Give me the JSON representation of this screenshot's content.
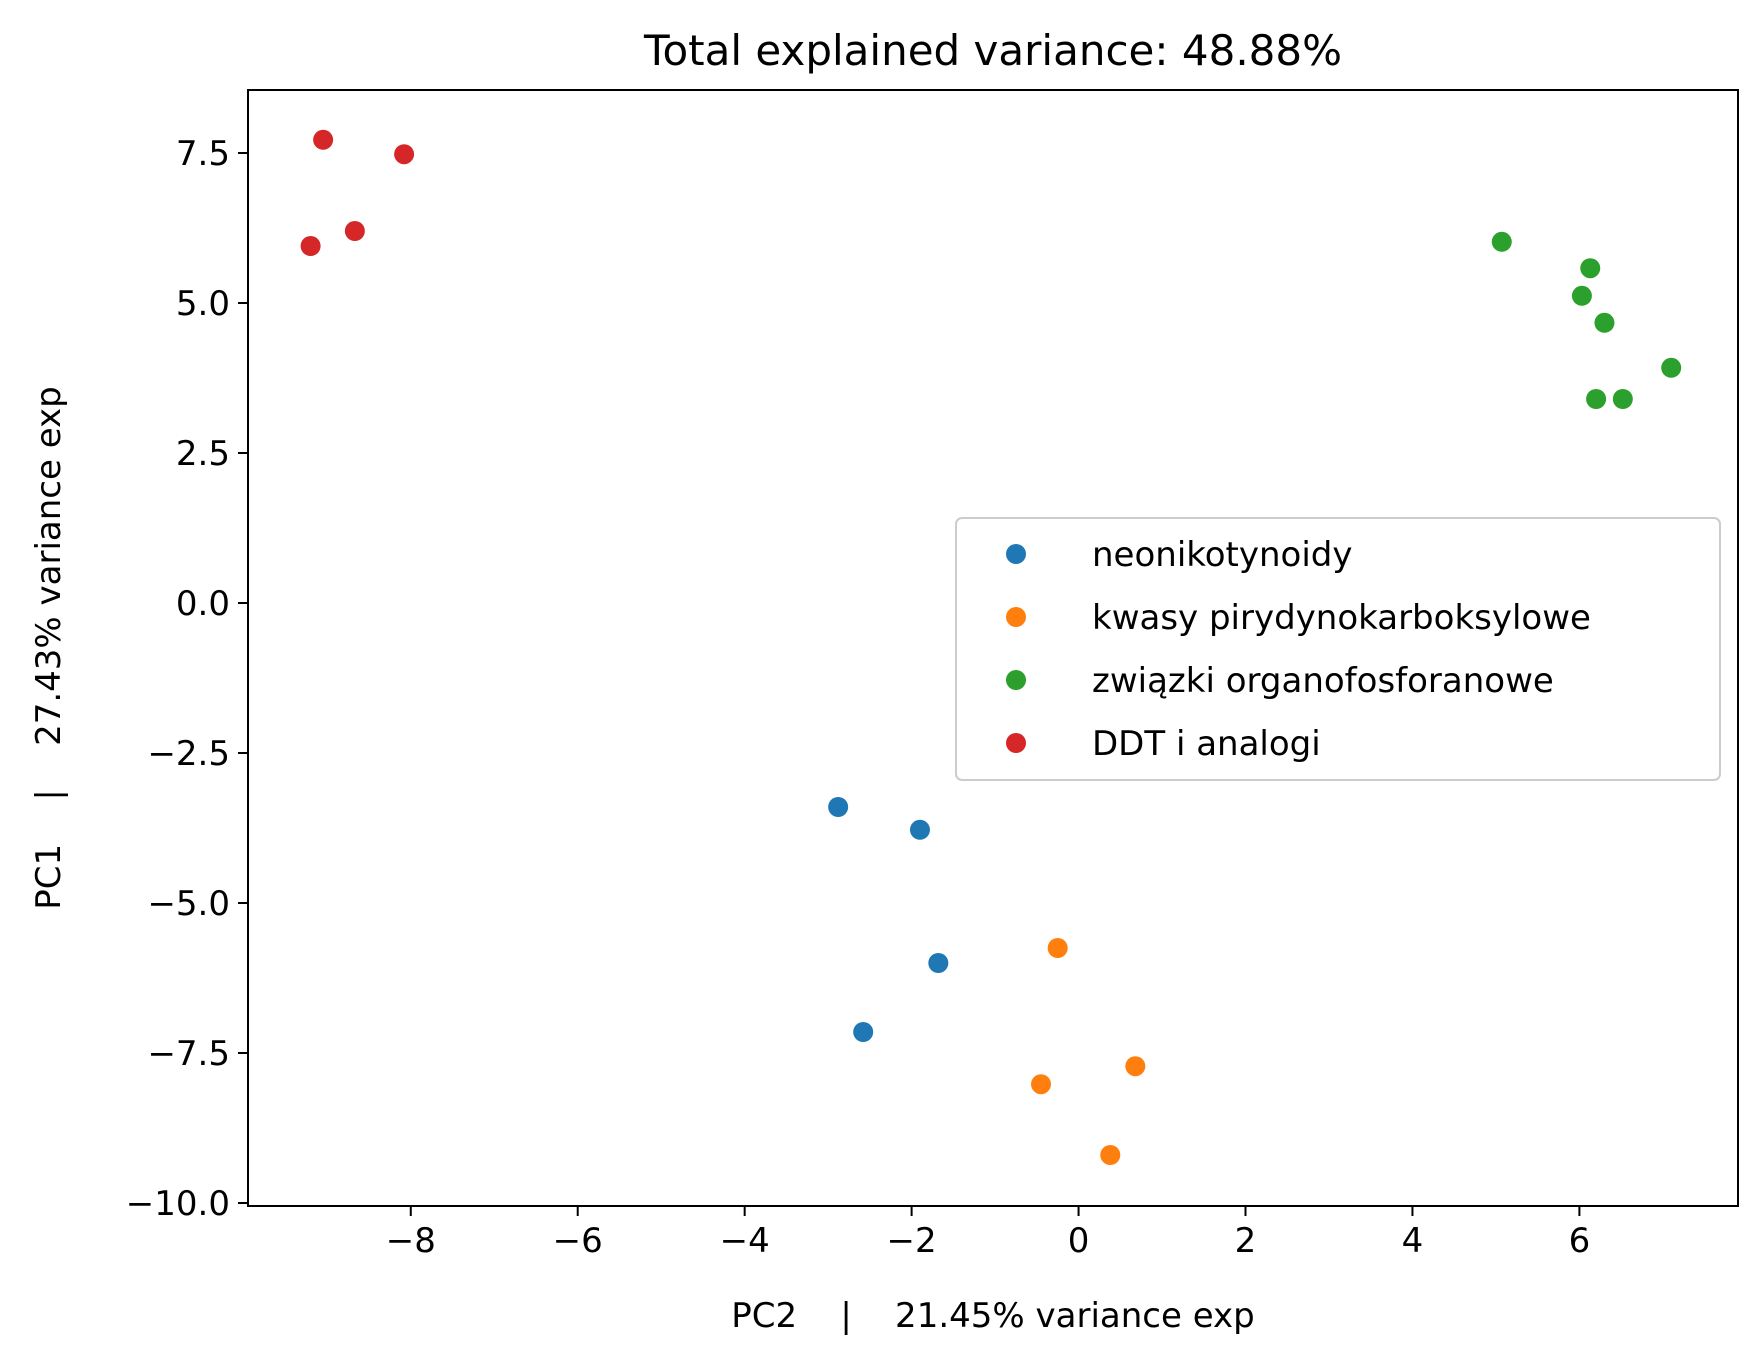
{
  "chart_data": {
    "type": "scatter",
    "title": "Total explained variance: 48.88%",
    "xlabel": "PC2    |    21.45% variance exp",
    "ylabel": "PC1    |    27.43% variance exp",
    "xlim": [
      -9.95,
      7.9
    ],
    "ylim": [
      -10.05,
      8.55
    ],
    "xticks": [
      -8,
      -6,
      -4,
      -2,
      0,
      2,
      4,
      6
    ],
    "xtick_labels": [
      "−8",
      "−6",
      "−4",
      "−2",
      "0",
      "2",
      "4",
      "6"
    ],
    "yticks": [
      -10.0,
      -7.5,
      -5.0,
      -2.5,
      0.0,
      2.5,
      5.0,
      7.5
    ],
    "ytick_labels": [
      "−10.0",
      "−7.5",
      "−5.0",
      "−2.5",
      "0.0",
      "2.5",
      "5.0",
      "7.5"
    ],
    "grid": false,
    "legend_position": "center-right",
    "series": [
      {
        "name": "neonikotynoidy",
        "color": "#1f77b4",
        "points": [
          [
            -2.88,
            -3.4
          ],
          [
            -1.9,
            -3.78
          ],
          [
            -1.68,
            -6.0
          ],
          [
            -2.58,
            -7.15
          ]
        ]
      },
      {
        "name": "kwasy pirydynokarboksylowe",
        "color": "#ff7f0e",
        "points": [
          [
            -0.25,
            -5.75
          ],
          [
            0.68,
            -7.72
          ],
          [
            -0.45,
            -8.02
          ],
          [
            0.38,
            -9.2
          ]
        ]
      },
      {
        "name": "związki organofosforanowe",
        "color": "#2ca02c",
        "points": [
          [
            5.07,
            6.02
          ],
          [
            6.13,
            5.58
          ],
          [
            6.03,
            5.12
          ],
          [
            6.3,
            4.67
          ],
          [
            7.1,
            3.92
          ],
          [
            6.2,
            3.4
          ],
          [
            6.52,
            3.4
          ]
        ]
      },
      {
        "name": "DDT i analogi",
        "color": "#d62728",
        "points": [
          [
            -9.05,
            7.72
          ],
          [
            -8.08,
            7.48
          ],
          [
            -8.67,
            6.2
          ],
          [
            -9.2,
            5.95
          ]
        ]
      }
    ]
  }
}
